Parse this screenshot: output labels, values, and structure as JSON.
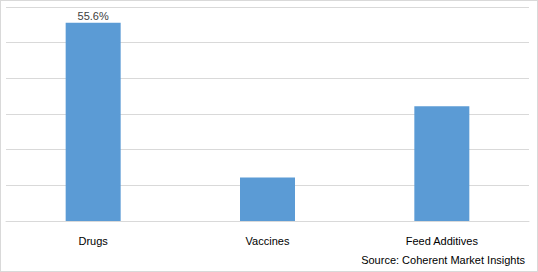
{
  "chart_data": {
    "type": "bar",
    "categories": [
      "Drugs",
      "Vaccines",
      "Feed Additives"
    ],
    "values": [
      55.6,
      12.2,
      32.2
    ],
    "value_labels": [
      "55.6%",
      null,
      null
    ],
    "color": "#5b9bd5",
    "ylim": [
      0,
      60
    ],
    "yticks": [
      0,
      10,
      20,
      30,
      40,
      50,
      60
    ],
    "grid": true,
    "tick_labels": "x",
    "source": "Source: Coherent Market Insights"
  }
}
